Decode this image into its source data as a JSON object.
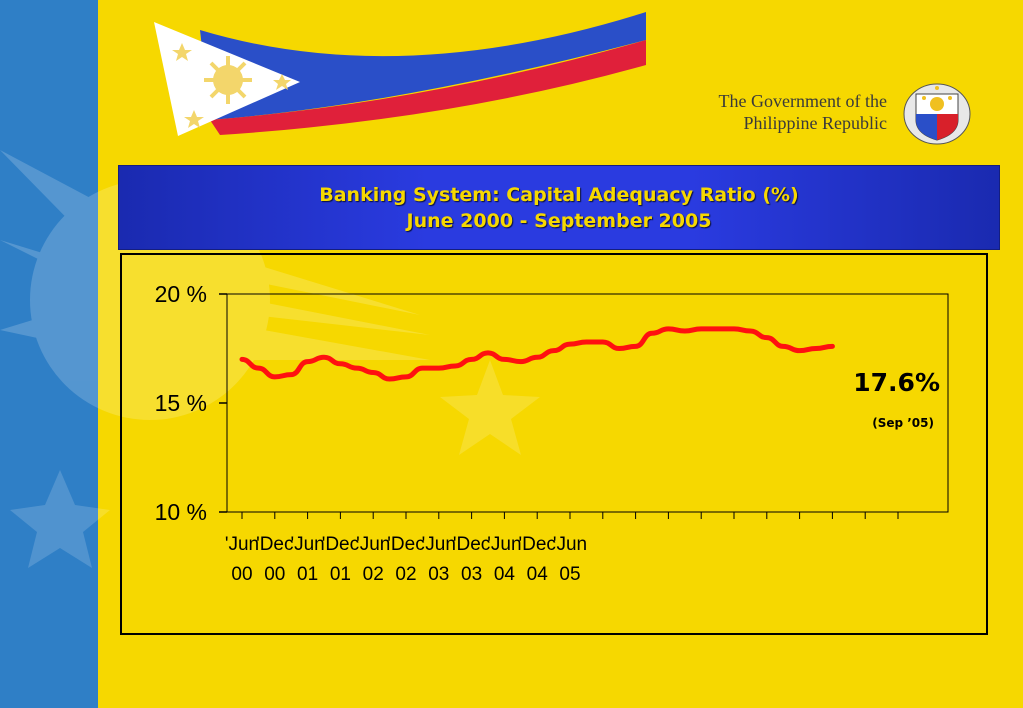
{
  "header": {
    "gov_line1": "The Government of the",
    "gov_line2": "Philippine Republic"
  },
  "title": {
    "line1": "Banking System: Capital Adequacy Ratio (%)",
    "line2": "June 2000 - September 2005"
  },
  "colors": {
    "background": "#f6d800",
    "side_band": "#2f7fc6",
    "title_box": "#2a3be0",
    "title_text": "#f6d800",
    "line": "#ff1010"
  },
  "icons": [
    "philippine-flag-icon",
    "government-seal-icon",
    "sun-ray-decor",
    "star-decor"
  ],
  "chart_data": {
    "type": "line",
    "title": "Banking System: Capital Adequacy Ratio (%)",
    "subtitle": "June 2000 - September 2005",
    "ylim": [
      10,
      20
    ],
    "yticks": [
      {
        "value": 20,
        "label": "20 %"
      },
      {
        "value": 15,
        "label": "15 %"
      },
      {
        "value": 10,
        "label": "10 %"
      }
    ],
    "xticks": [
      {
        "index": 0,
        "line1": "'Jun",
        "line2": "00"
      },
      {
        "index": 2,
        "line1": "'Dec",
        "line2": "00"
      },
      {
        "index": 4,
        "line1": "'Jun",
        "line2": "01"
      },
      {
        "index": 6,
        "line1": "'Dec",
        "line2": "01"
      },
      {
        "index": 8,
        "line1": "'Jun",
        "line2": "02"
      },
      {
        "index": 10,
        "line1": "'Dec",
        "line2": "02"
      },
      {
        "index": 12,
        "line1": "'Jun",
        "line2": "03"
      },
      {
        "index": 14,
        "line1": "'Dec",
        "line2": "03"
      },
      {
        "index": 16,
        "line1": "'Jun",
        "line2": "04"
      },
      {
        "index": 18,
        "line1": "'Dec",
        "line2": "04"
      },
      {
        "index": 20,
        "line1": "'Jun",
        "line2": "05"
      }
    ],
    "series": [
      {
        "values": [
          17.0,
          16.6,
          16.2,
          16.3,
          16.9,
          17.1,
          16.8,
          16.6,
          16.4,
          16.1,
          16.2,
          16.6,
          16.6,
          16.7,
          17.0,
          17.3,
          17.0,
          16.9,
          17.1,
          17.4,
          17.7,
          17.8,
          17.8,
          17.5,
          17.6,
          18.2,
          18.4,
          18.3,
          18.4,
          18.4,
          18.4,
          18.3,
          18.0,
          17.6,
          17.4,
          17.5,
          17.6
        ]
      }
    ],
    "annotation": {
      "value_label": "17.6%",
      "date_label": "(Sep ’05)"
    },
    "grid": false,
    "legend": "none"
  }
}
